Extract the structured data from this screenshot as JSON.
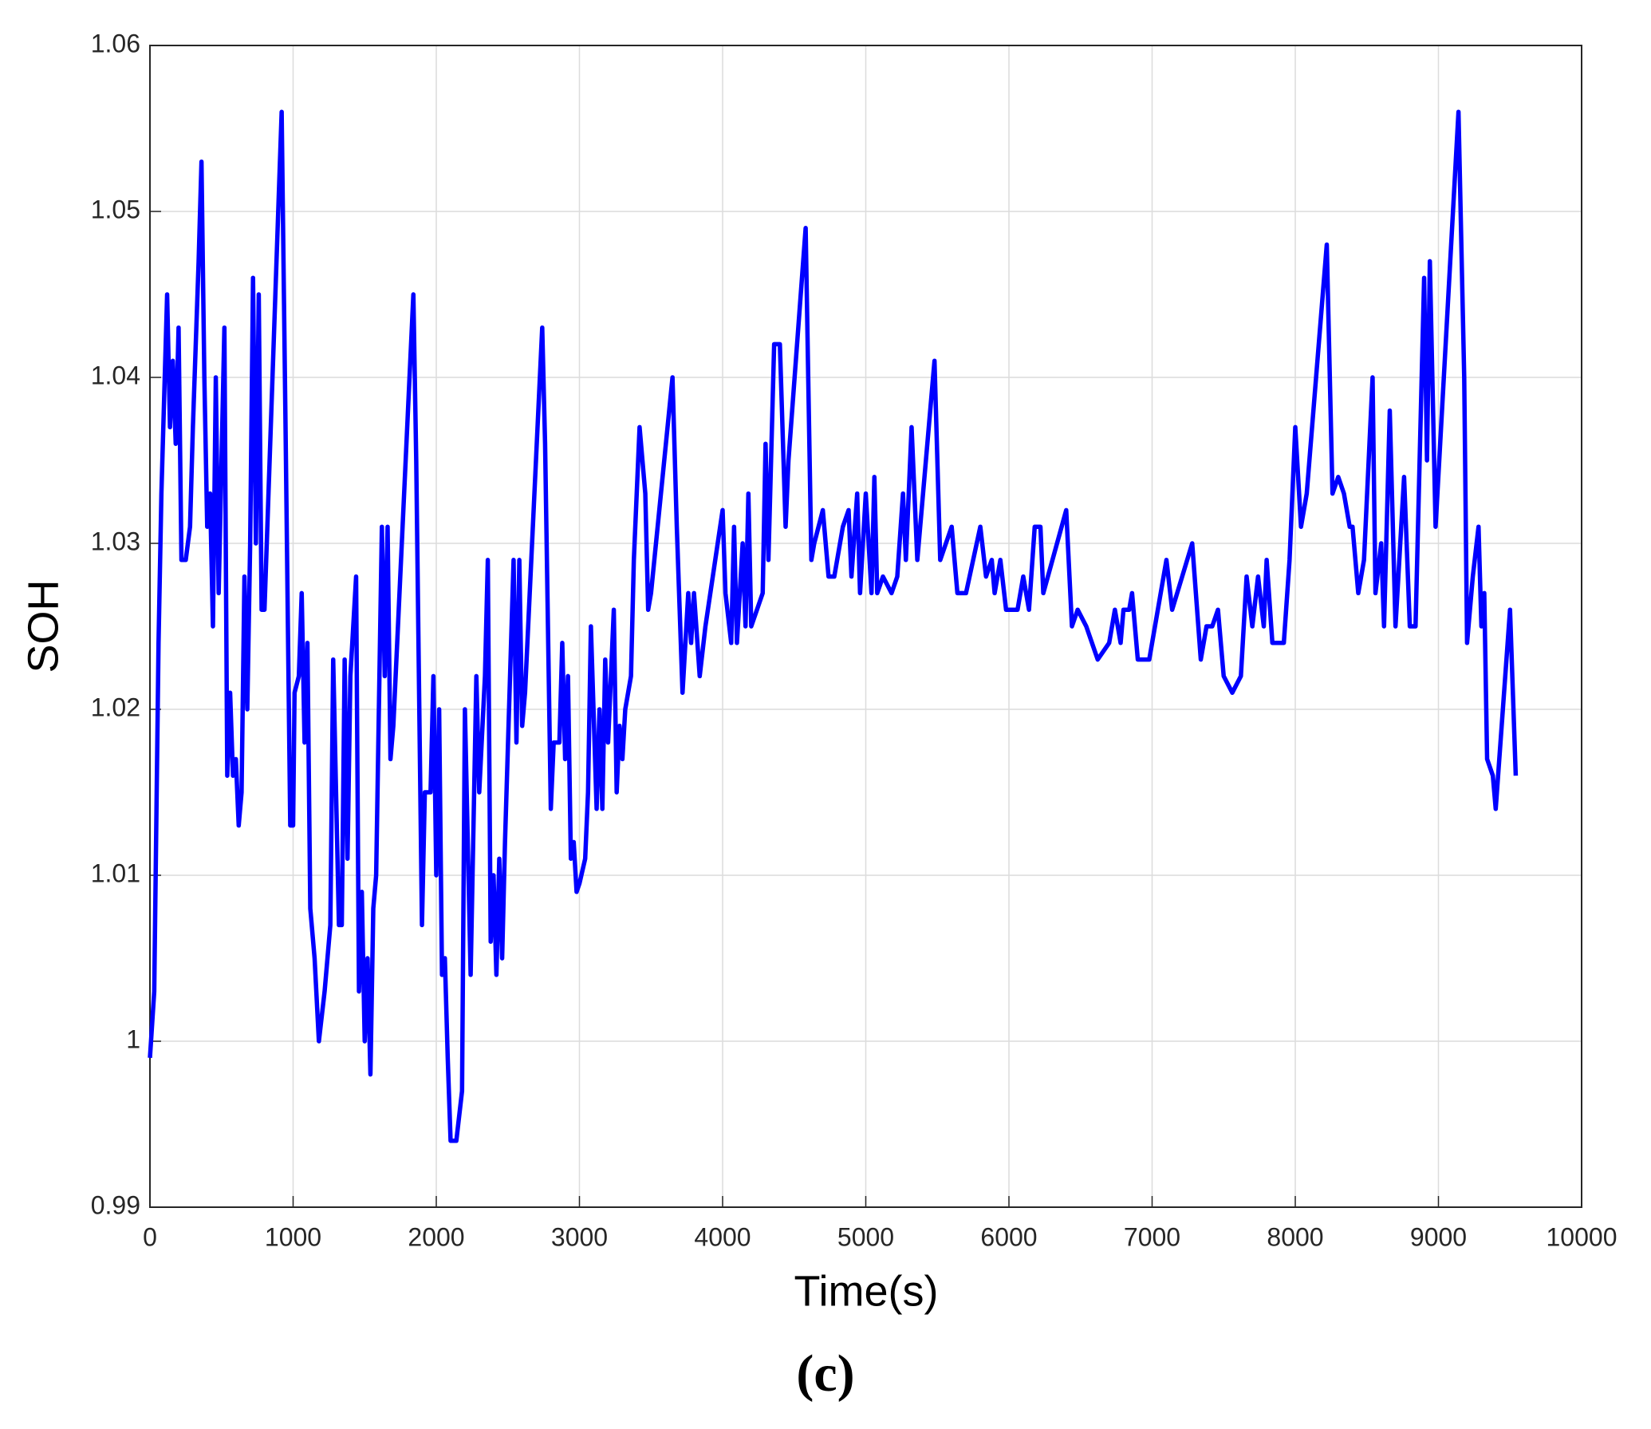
{
  "chart_data": {
    "type": "line",
    "xlabel": "Time(s)",
    "ylabel": "SOH",
    "caption": "(c)",
    "xlim": [
      0,
      10000
    ],
    "xticks": [
      0,
      1000,
      2000,
      3000,
      4000,
      5000,
      6000,
      7000,
      8000,
      9000,
      10000
    ],
    "ylim": [
      0.99,
      1.06
    ],
    "yticks": [
      0.99,
      1,
      1.01,
      1.02,
      1.03,
      1.04,
      1.05,
      1.06
    ],
    "grid": true,
    "series": [
      {
        "color": "#0000ff",
        "x": [
          0,
          30,
          60,
          80,
          100,
          120,
          140,
          160,
          180,
          200,
          220,
          250,
          280,
          300,
          340,
          360,
          380,
          400,
          420,
          440,
          460,
          480,
          500,
          520,
          540,
          560,
          580,
          600,
          620,
          640,
          660,
          680,
          700,
          720,
          740,
          760,
          780,
          800,
          920,
          950,
          980,
          1000,
          1010,
          1040,
          1060,
          1080,
          1100,
          1120,
          1150,
          1180,
          1220,
          1260,
          1280,
          1320,
          1340,
          1360,
          1380,
          1400,
          1440,
          1460,
          1480,
          1500,
          1520,
          1540,
          1560,
          1580,
          1620,
          1640,
          1660,
          1680,
          1700,
          1840,
          1860,
          1900,
          1920,
          1960,
          1980,
          2000,
          2020,
          2040,
          2060,
          2080,
          2100,
          2140,
          2180,
          2200,
          2240,
          2280,
          2300,
          2340,
          2360,
          2380,
          2400,
          2420,
          2440,
          2460,
          2480,
          2540,
          2560,
          2580,
          2600,
          2620,
          2740,
          2760,
          2800,
          2820,
          2860,
          2880,
          2900,
          2920,
          2940,
          2960,
          2980,
          3000,
          3040,
          3060,
          3080,
          3120,
          3140,
          3160,
          3180,
          3200,
          3240,
          3260,
          3280,
          3300,
          3320,
          3360,
          3380,
          3420,
          3460,
          3480,
          3500,
          3650,
          3680,
          3720,
          3760,
          3780,
          3800,
          3840,
          3880,
          4000,
          4020,
          4060,
          4080,
          4100,
          4140,
          4160,
          4180,
          4200,
          4240,
          4280,
          4300,
          4320,
          4360,
          4400,
          4440,
          4460,
          4580,
          4620,
          4640,
          4700,
          4740,
          4780,
          4840,
          4880,
          4900,
          4940,
          4960,
          5000,
          5040,
          5060,
          5080,
          5120,
          5180,
          5220,
          5260,
          5280,
          5320,
          5360,
          5380,
          5480,
          5520,
          5560,
          5600,
          5640,
          5700,
          5800,
          5840,
          5880,
          5900,
          5940,
          5980,
          6020,
          6060,
          6100,
          6140,
          6180,
          6220,
          6240,
          6400,
          6440,
          6480,
          6540,
          6580,
          6620,
          6700,
          6740,
          6780,
          6800,
          6840,
          6860,
          6900,
          6940,
          6980,
          7020,
          7100,
          7140,
          7280,
          7340,
          7380,
          7420,
          7460,
          7500,
          7560,
          7620,
          7660,
          7700,
          7740,
          7780,
          7800,
          7840,
          7880,
          7920,
          7960,
          8000,
          8040,
          8080,
          8220,
          8260,
          8300,
          8340,
          8380,
          8400,
          8440,
          8480,
          8540,
          8560,
          8600,
          8620,
          8660,
          8700,
          8760,
          8800,
          8840,
          8900,
          8920,
          8940,
          8980,
          9140,
          9180,
          9200,
          9240,
          9280,
          9300,
          9320,
          9340,
          9380,
          9400,
          9500,
          9540
        ],
        "values": [
          0.999,
          1.003,
          1.024,
          1.033,
          1.039,
          1.045,
          1.037,
          1.041,
          1.036,
          1.043,
          1.029,
          1.029,
          1.031,
          1.037,
          1.047,
          1.053,
          1.04,
          1.031,
          1.033,
          1.025,
          1.04,
          1.027,
          1.035,
          1.043,
          1.016,
          1.021,
          1.016,
          1.017,
          1.013,
          1.015,
          1.028,
          1.02,
          1.03,
          1.046,
          1.03,
          1.045,
          1.026,
          1.026,
          1.056,
          1.035,
          1.013,
          1.013,
          1.021,
          1.022,
          1.027,
          1.018,
          1.024,
          1.008,
          1.005,
          1.0,
          1.003,
          1.007,
          1.023,
          1.007,
          1.007,
          1.023,
          1.011,
          1.022,
          1.028,
          1.003,
          1.009,
          1.0,
          1.005,
          0.998,
          1.008,
          1.01,
          1.031,
          1.022,
          1.031,
          1.017,
          1.019,
          1.045,
          1.035,
          1.007,
          1.015,
          1.015,
          1.022,
          1.01,
          1.02,
          1.004,
          1.005,
          0.999,
          0.994,
          0.994,
          0.997,
          1.02,
          1.004,
          1.022,
          1.015,
          1.022,
          1.029,
          1.006,
          1.01,
          1.004,
          1.011,
          1.005,
          1.012,
          1.029,
          1.018,
          1.029,
          1.019,
          1.021,
          1.043,
          1.036,
          1.014,
          1.018,
          1.018,
          1.024,
          1.017,
          1.022,
          1.011,
          1.012,
          1.009,
          1.0095,
          1.011,
          1.015,
          1.025,
          1.014,
          1.02,
          1.014,
          1.023,
          1.018,
          1.026,
          1.015,
          1.019,
          1.017,
          1.02,
          1.022,
          1.029,
          1.037,
          1.033,
          1.026,
          1.027,
          1.04,
          1.031,
          1.021,
          1.027,
          1.024,
          1.027,
          1.022,
          1.025,
          1.032,
          1.027,
          1.024,
          1.031,
          1.024,
          1.03,
          1.025,
          1.033,
          1.025,
          1.026,
          1.027,
          1.036,
          1.029,
          1.042,
          1.042,
          1.031,
          1.035,
          1.049,
          1.029,
          1.03,
          1.032,
          1.028,
          1.028,
          1.031,
          1.032,
          1.028,
          1.033,
          1.027,
          1.033,
          1.027,
          1.034,
          1.027,
          1.028,
          1.027,
          1.028,
          1.033,
          1.029,
          1.037,
          1.029,
          1.031,
          1.041,
          1.029,
          1.03,
          1.031,
          1.027,
          1.027,
          1.031,
          1.028,
          1.029,
          1.027,
          1.029,
          1.026,
          1.026,
          1.026,
          1.028,
          1.026,
          1.031,
          1.031,
          1.027,
          1.032,
          1.025,
          1.026,
          1.025,
          1.024,
          1.023,
          1.024,
          1.026,
          1.024,
          1.026,
          1.026,
          1.027,
          1.023,
          1.023,
          1.023,
          1.025,
          1.029,
          1.026,
          1.03,
          1.023,
          1.025,
          1.025,
          1.026,
          1.022,
          1.021,
          1.022,
          1.028,
          1.025,
          1.028,
          1.025,
          1.029,
          1.024,
          1.024,
          1.024,
          1.029,
          1.037,
          1.031,
          1.033,
          1.048,
          1.033,
          1.034,
          1.033,
          1.031,
          1.031,
          1.027,
          1.029,
          1.04,
          1.027,
          1.03,
          1.025,
          1.038,
          1.025,
          1.034,
          1.025,
          1.025,
          1.046,
          1.035,
          1.047,
          1.031,
          1.056,
          1.04,
          1.024,
          1.028,
          1.031,
          1.025,
          1.027,
          1.017,
          1.016,
          1.014,
          1.026,
          1.016
        ]
      }
    ]
  }
}
